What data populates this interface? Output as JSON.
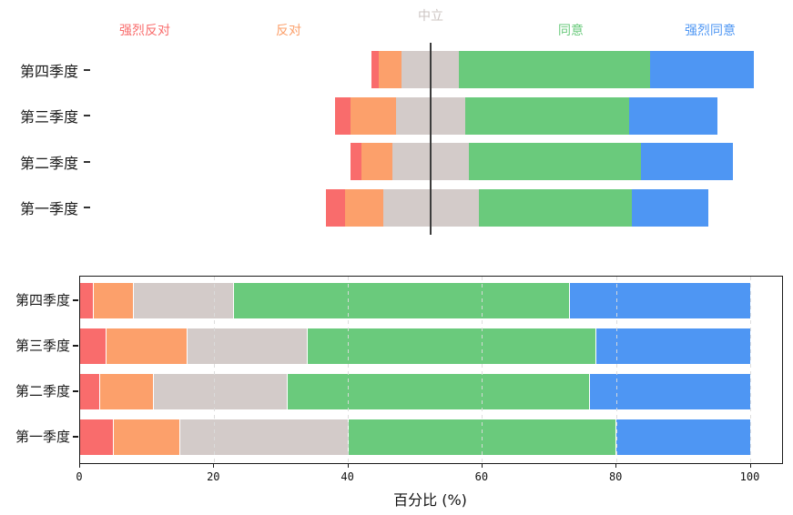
{
  "figure": {
    "background": "#ffffff"
  },
  "likert": {
    "levels": [
      {
        "key": "strongly_disagree",
        "label": "强烈反对",
        "color": "#f96c6c"
      },
      {
        "key": "disagree",
        "label": "反对",
        "color": "#fca06b"
      },
      {
        "key": "neutral",
        "label": "中立",
        "color": "#d3cbc9"
      },
      {
        "key": "agree",
        "label": "同意",
        "color": "#6aca7c"
      },
      {
        "key": "strongly_agree",
        "label": "强烈同意",
        "color": "#4e96f3"
      }
    ],
    "neutral_label_color": "#ccc4c2",
    "center_line_color": "#3c3c3c"
  },
  "chart_data": [
    {
      "type": "bar",
      "subtype": "diverging-stacked-horizontal",
      "alignment": "neutral-centered",
      "units": "percent",
      "categories": [
        "第四季度",
        "第三季度",
        "第二季度",
        "第一季度"
      ],
      "series": [
        {
          "name": "强烈反对",
          "color": "#f96c6c",
          "values": [
            2,
            4,
            3,
            5
          ]
        },
        {
          "name": "反对",
          "color": "#fca06b",
          "values": [
            6,
            12,
            8,
            10
          ]
        },
        {
          "name": "中立",
          "color": "#d3cbc9",
          "values": [
            15,
            18,
            20,
            25
          ]
        },
        {
          "name": "同意",
          "color": "#6aca7c",
          "values": [
            50,
            43,
            45,
            40
          ]
        },
        {
          "name": "强烈同意",
          "color": "#4e96f3",
          "values": [
            27,
            23,
            24,
            20
          ]
        }
      ],
      "legend_position": "top"
    },
    {
      "type": "bar",
      "subtype": "stacked-horizontal",
      "units": "percent",
      "categories": [
        "第四季度",
        "第三季度",
        "第二季度",
        "第一季度"
      ],
      "series": [
        {
          "name": "强烈反对",
          "color": "#f96c6c",
          "values": [
            2,
            4,
            3,
            5
          ]
        },
        {
          "name": "反对",
          "color": "#fca06b",
          "values": [
            6,
            12,
            8,
            10
          ]
        },
        {
          "name": "中立",
          "color": "#d3cbc9",
          "values": [
            15,
            18,
            20,
            25
          ]
        },
        {
          "name": "同意",
          "color": "#6aca7c",
          "values": [
            50,
            43,
            45,
            40
          ]
        },
        {
          "name": "强烈同意",
          "color": "#4e96f3",
          "values": [
            27,
            23,
            24,
            20
          ]
        }
      ],
      "xlabel": "百分比 (%)",
      "xticks": [
        0,
        20,
        40,
        60,
        80,
        100
      ],
      "xlim": [
        0,
        104.7
      ],
      "grid": "dashed-vertical"
    }
  ]
}
